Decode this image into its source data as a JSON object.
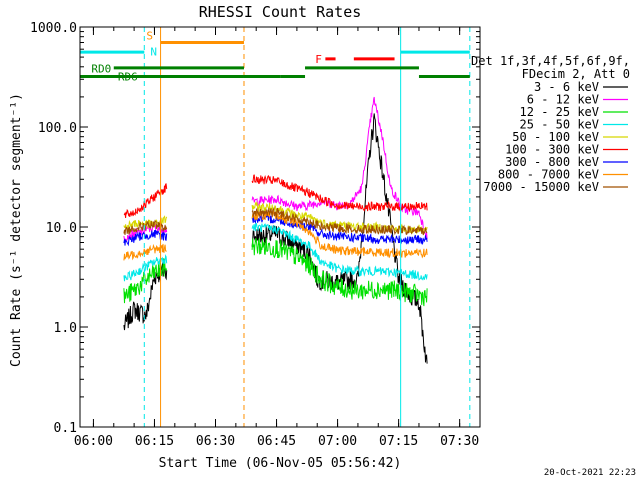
{
  "chart_data": {
    "type": "line",
    "title": "RHESSI Count Rates",
    "xlabel": "Start Time (06-Nov-05 05:56:42)",
    "ylabel": "Count Rate (s⁻¹ detector segment⁻¹)",
    "y_scale": "log",
    "ylim": [
      0.1,
      1000.0
    ],
    "xlim": [
      "05:56:42",
      "07:35:00"
    ],
    "x_ticks": [
      "06:00",
      "06:15",
      "06:30",
      "06:45",
      "07:00",
      "07:15",
      "07:30"
    ],
    "y_ticks": [
      "0.1",
      "1.0",
      "10.0",
      "100.0",
      "1000.0"
    ],
    "grid": false,
    "footer_date": "20-Oct-2021 22:23",
    "legend": {
      "placement": "right",
      "header_lines": [
        "Det 1f,3f,4f,5f,6f,9f,",
        "FDecim 2, Att 0"
      ],
      "entries": [
        {
          "label": "3 - 6 keV",
          "color": "#000000"
        },
        {
          "label": "6 - 12 keV",
          "color": "#ff00ff"
        },
        {
          "label": "12 - 25 keV",
          "color": "#00e000"
        },
        {
          "label": "25 - 50 keV",
          "color": "#00e8e8"
        },
        {
          "label": "50 - 100 keV",
          "color": "#d8d800"
        },
        {
          "label": "100 - 300 keV",
          "color": "#ff0000"
        },
        {
          "label": "300 - 800 keV",
          "color": "#0000ff"
        },
        {
          "label": "800 - 7000 keV",
          "color": "#ff9000"
        },
        {
          "label": "7000 - 15000 keV",
          "color": "#a05000"
        }
      ]
    },
    "segments": [
      {
        "x": [
          "06:07:30",
          "06:18:00"
        ]
      },
      {
        "x": [
          "06:39:00",
          "06:53:00"
        ]
      },
      {
        "x": [
          "06:53:00",
          "07:22:00"
        ]
      }
    ],
    "series": [
      {
        "name": "3 - 6 keV",
        "color": "#000000",
        "points": [
          [
            "06:07:30",
            1.0
          ],
          [
            "06:10:00",
            1.5
          ],
          [
            "06:13:00",
            1.3
          ],
          [
            "06:15:00",
            3.2
          ],
          [
            "06:17:00",
            3.6
          ],
          [
            "06:18:00",
            3.5
          ],
          [
            "06:39:00",
            8.0
          ],
          [
            "06:45:00",
            8.5
          ],
          [
            "06:50:00",
            6.5
          ],
          [
            "06:53:00",
            5.5
          ],
          [
            "06:55:00",
            3.0
          ],
          [
            "07:00:00",
            2.8
          ],
          [
            "07:05:00",
            3.0
          ],
          [
            "07:08:00",
            60
          ],
          [
            "07:09:00",
            120
          ],
          [
            "07:12:00",
            20
          ],
          [
            "07:15:00",
            3.0
          ],
          [
            "07:18:00",
            2.0
          ],
          [
            "07:20:00",
            1.8
          ],
          [
            "07:22:00",
            0.4
          ]
        ]
      },
      {
        "name": "6 - 12 keV",
        "color": "#ff00ff",
        "points": [
          [
            "06:07:30",
            8.0
          ],
          [
            "06:12:00",
            9.0
          ],
          [
            "06:15:00",
            10.0
          ],
          [
            "06:18:00",
            9.5
          ],
          [
            "06:39:00",
            18.0
          ],
          [
            "06:45:00",
            19.0
          ],
          [
            "06:50:00",
            16.0
          ],
          [
            "06:53:00",
            16.5
          ],
          [
            "06:56:00",
            18.0
          ],
          [
            "07:00:00",
            16.5
          ],
          [
            "07:03:00",
            17.0
          ],
          [
            "07:06:00",
            25.0
          ],
          [
            "07:08:00",
            110
          ],
          [
            "07:09:00",
            190
          ],
          [
            "07:11:00",
            80
          ],
          [
            "07:13:00",
            25
          ],
          [
            "07:16:00",
            15
          ],
          [
            "07:20:00",
            14
          ],
          [
            "07:22:00",
            8.0
          ]
        ]
      },
      {
        "name": "12 - 25 keV",
        "color": "#00e000",
        "points": [
          [
            "06:07:30",
            2.0
          ],
          [
            "06:10:00",
            2.3
          ],
          [
            "06:13:00",
            3.0
          ],
          [
            "06:15:00",
            3.5
          ],
          [
            "06:18:00",
            4.0
          ],
          [
            "06:39:00",
            6.5
          ],
          [
            "06:45:00",
            6.2
          ],
          [
            "06:50:00",
            5.0
          ],
          [
            "06:53:00",
            4.2
          ],
          [
            "06:56:00",
            3.0
          ],
          [
            "07:00:00",
            2.5
          ],
          [
            "07:05:00",
            2.3
          ],
          [
            "07:10:00",
            2.4
          ],
          [
            "07:15:00",
            2.3
          ],
          [
            "07:22:00",
            2.0
          ]
        ]
      },
      {
        "name": "25 - 50 keV",
        "color": "#00e8e8",
        "points": [
          [
            "06:07:30",
            3.0
          ],
          [
            "06:10:00",
            3.4
          ],
          [
            "06:13:00",
            4.0
          ],
          [
            "06:15:00",
            4.5
          ],
          [
            "06:18:00",
            4.8
          ],
          [
            "06:39:00",
            10.0
          ],
          [
            "06:45:00",
            9.5
          ],
          [
            "06:50:00",
            7.5
          ],
          [
            "06:53:00",
            6.5
          ],
          [
            "06:56:00",
            4.5
          ],
          [
            "07:00:00",
            3.8
          ],
          [
            "07:05:00",
            3.6
          ],
          [
            "07:10:00",
            3.6
          ],
          [
            "07:15:00",
            3.5
          ],
          [
            "07:22:00",
            3.2
          ]
        ]
      },
      {
        "name": "50 - 100 keV",
        "color": "#d8d800",
        "points": [
          [
            "06:07:30",
            10.0
          ],
          [
            "06:11:00",
            11.0
          ],
          [
            "06:15:00",
            10.5
          ],
          [
            "06:18:00",
            12.0
          ],
          [
            "06:39:00",
            16.0
          ],
          [
            "06:45:00",
            15.5
          ],
          [
            "06:50:00",
            13.0
          ],
          [
            "06:53:00",
            12.5
          ],
          [
            "06:56:00",
            11.0
          ],
          [
            "07:00:00",
            10.5
          ],
          [
            "07:05:00",
            10.0
          ],
          [
            "07:10:00",
            10.0
          ],
          [
            "07:15:00",
            9.5
          ],
          [
            "07:22:00",
            9.5
          ]
        ]
      },
      {
        "name": "100 - 300 keV",
        "color": "#ff0000",
        "points": [
          [
            "06:07:30",
            13.0
          ],
          [
            "06:10:00",
            14.0
          ],
          [
            "06:13:00",
            17.0
          ],
          [
            "06:16:00",
            22.0
          ],
          [
            "06:18:00",
            25.0
          ],
          [
            "06:39:00",
            30.0
          ],
          [
            "06:45:00",
            29.0
          ],
          [
            "06:50:00",
            24.0
          ],
          [
            "06:53:00",
            22.0
          ],
          [
            "06:56:00",
            19.0
          ],
          [
            "07:00:00",
            16.5
          ],
          [
            "07:05:00",
            16.0
          ],
          [
            "07:10:00",
            16.0
          ],
          [
            "07:15:00",
            16.0
          ],
          [
            "07:22:00",
            16.0
          ]
        ]
      },
      {
        "name": "300 - 800 keV",
        "color": "#0000ff",
        "points": [
          [
            "06:07:30",
            7.0
          ],
          [
            "06:11:00",
            8.0
          ],
          [
            "06:15:00",
            8.5
          ],
          [
            "06:18:00",
            8.0
          ],
          [
            "06:39:00",
            12.0
          ],
          [
            "06:45:00",
            12.0
          ],
          [
            "06:50:00",
            10.5
          ],
          [
            "06:53:00",
            10.0
          ],
          [
            "06:56:00",
            8.5
          ],
          [
            "07:00:00",
            8.0
          ],
          [
            "07:05:00",
            7.8
          ],
          [
            "07:10:00",
            7.5
          ],
          [
            "07:15:00",
            7.5
          ],
          [
            "07:22:00",
            7.5
          ]
        ]
      },
      {
        "name": "800 - 7000 keV",
        "color": "#ff9000",
        "points": [
          [
            "06:07:30",
            5.0
          ],
          [
            "06:11:00",
            5.5
          ],
          [
            "06:15:00",
            6.0
          ],
          [
            "06:18:00",
            6.2
          ],
          [
            "06:39:00",
            13.0
          ],
          [
            "06:45:00",
            13.0
          ],
          [
            "06:50:00",
            11.0
          ],
          [
            "06:53:00",
            9.0
          ],
          [
            "06:56:00",
            6.5
          ],
          [
            "07:00:00",
            5.8
          ],
          [
            "07:05:00",
            5.7
          ],
          [
            "07:10:00",
            5.6
          ],
          [
            "07:15:00",
            5.5
          ],
          [
            "07:22:00",
            5.5
          ]
        ]
      },
      {
        "name": "7000 - 15000 keV",
        "color": "#a05000",
        "points": [
          [
            "06:07:30",
            9.0
          ],
          [
            "06:11:00",
            10.0
          ],
          [
            "06:15:00",
            10.5
          ],
          [
            "06:18:00",
            9.5
          ],
          [
            "06:39:00",
            14.0
          ],
          [
            "06:45:00",
            14.0
          ],
          [
            "06:50:00",
            12.0
          ],
          [
            "06:53:00",
            11.5
          ],
          [
            "06:56:00",
            10.0
          ],
          [
            "07:00:00",
            9.8
          ],
          [
            "07:05:00",
            9.5
          ],
          [
            "07:10:00",
            9.5
          ],
          [
            "07:15:00",
            9.3
          ],
          [
            "07:22:00",
            9.2
          ]
        ]
      }
    ],
    "vlines": [
      {
        "x": "05:56:42",
        "color": "#00e8e8",
        "style": "solid"
      },
      {
        "x": "06:12:30",
        "color": "#00e8e8",
        "style": "dashed"
      },
      {
        "x": "06:16:30",
        "color": "#ff9000",
        "style": "solid"
      },
      {
        "x": "06:37:00",
        "color": "#ff9000",
        "style": "dashed"
      },
      {
        "x": "07:15:30",
        "color": "#00e8e8",
        "style": "solid"
      },
      {
        "x": "07:32:30",
        "color": "#00e8e8",
        "style": "dashed"
      }
    ],
    "flag_bars": [
      {
        "color": "#00e8e8",
        "y": 560,
        "segments": [
          [
            "05:56:42",
            "06:12:30"
          ],
          [
            "07:15:30",
            "07:32:30"
          ]
        ]
      },
      {
        "color": "#ff9000",
        "y": 700,
        "segments": [
          [
            "06:16:30",
            "06:37:00"
          ]
        ]
      },
      {
        "color": "#008000",
        "y": 390,
        "segments": [
          [
            "06:05:00",
            "06:37:00"
          ],
          [
            "06:52:00",
            "07:20:00"
          ]
        ]
      },
      {
        "color": "#008000",
        "y": 320,
        "segments": [
          [
            "05:56:42",
            "06:37:00"
          ],
          [
            "06:37:00",
            "06:46:00"
          ],
          [
            "06:46:00",
            "06:52:00"
          ],
          [
            "07:20:00",
            "07:32:30"
          ]
        ]
      },
      {
        "color": "#ff0000",
        "y": 480,
        "segments": [
          [
            "06:57:00",
            "06:59:30"
          ],
          [
            "07:04:00",
            "07:14:00"
          ]
        ]
      }
    ],
    "flag_labels": [
      {
        "text": "S",
        "color": "#ff9000",
        "x": "06:13:00",
        "y": 820
      },
      {
        "text": "N",
        "color": "#00e8e8",
        "x": "06:14:00",
        "y": 570
      },
      {
        "text": "RD0",
        "color": "#008000",
        "x": "05:59:30",
        "y": 385
      },
      {
        "text": "RD6",
        "color": "#008000",
        "x": "06:06:00",
        "y": 320
      },
      {
        "text": "F",
        "color": "#ff0000",
        "x": "06:54:30",
        "y": 480
      }
    ]
  }
}
